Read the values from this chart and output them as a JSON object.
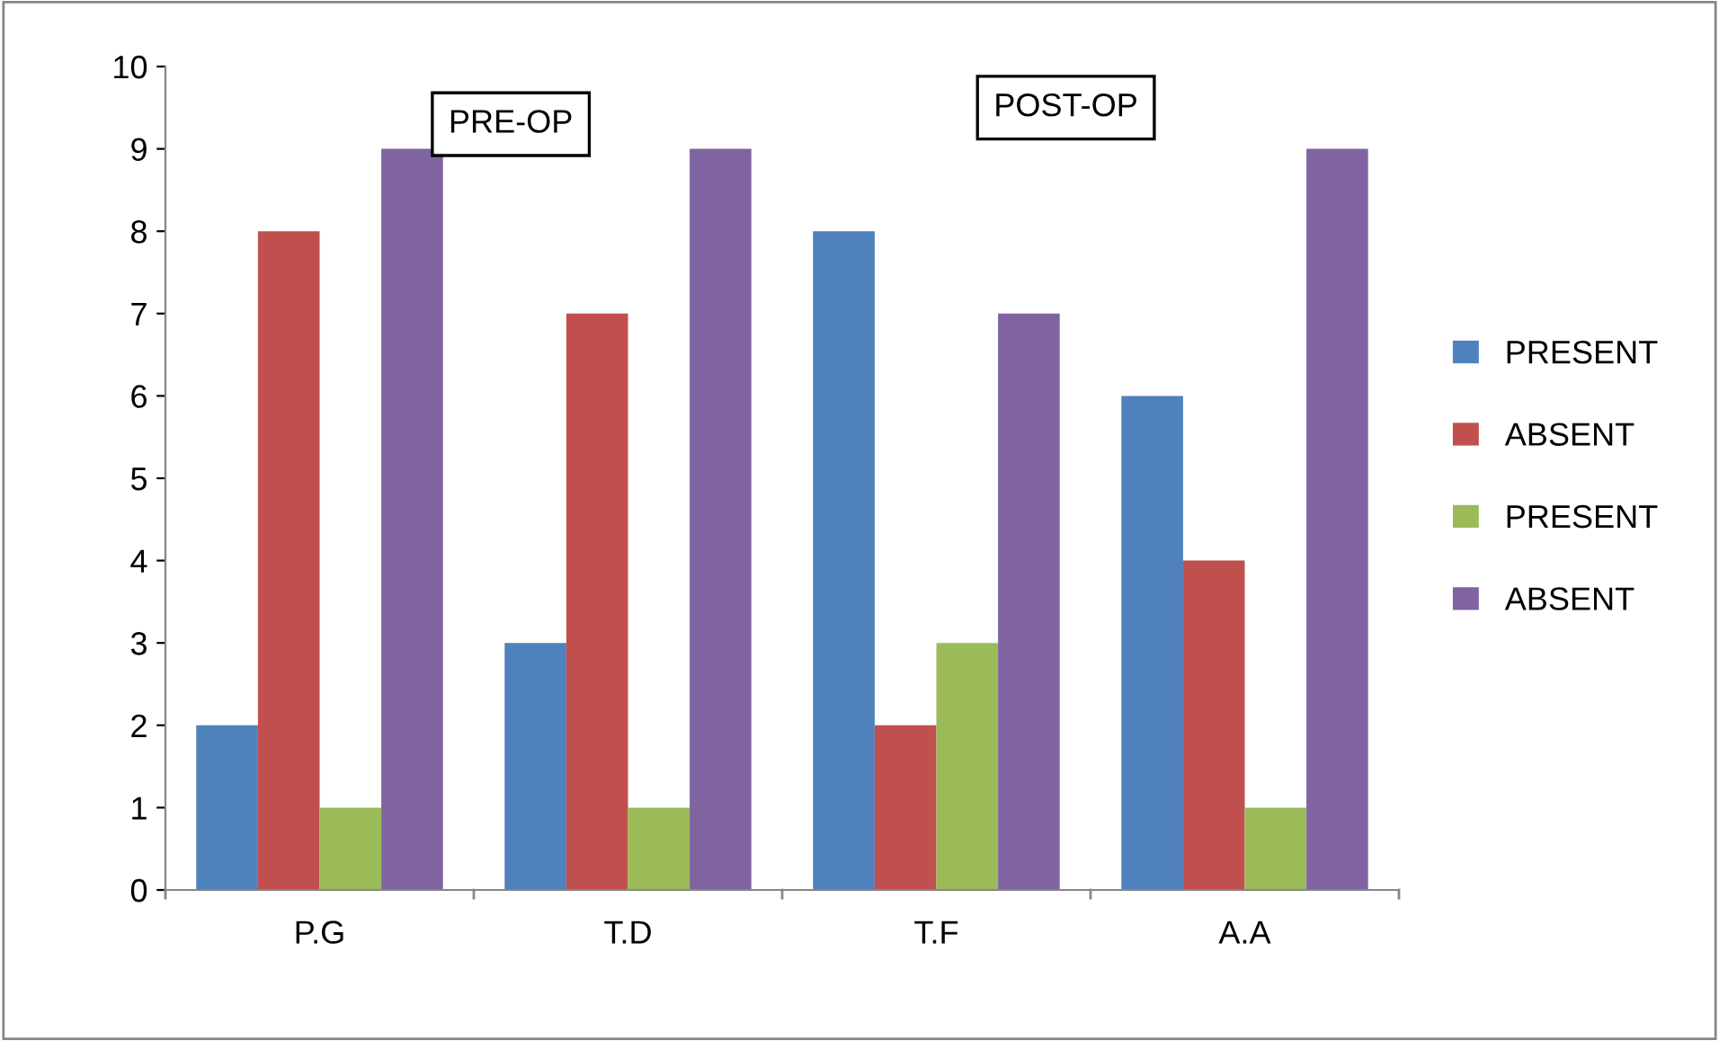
{
  "chart_data": {
    "type": "bar",
    "categories": [
      "P.G",
      "T.D",
      "T.F",
      "A.A"
    ],
    "series": [
      {
        "name": "PRESENT",
        "color": "#4f81bd",
        "values": [
          2,
          3,
          8,
          6
        ]
      },
      {
        "name": "ABSENT",
        "color": "#c0504d",
        "values": [
          8,
          7,
          2,
          4
        ]
      },
      {
        "name": "PRESENT",
        "color": "#9bbb59",
        "values": [
          1,
          1,
          3,
          1
        ]
      },
      {
        "name": "ABSENT",
        "color": "#8064a2",
        "values": [
          9,
          9,
          7,
          9
        ]
      }
    ],
    "ylim": [
      0,
      10
    ],
    "yticks": [
      0,
      1,
      2,
      3,
      4,
      5,
      6,
      7,
      8,
      9,
      10
    ],
    "grid": false,
    "legend": "right",
    "annotations": [
      "PRE-OP",
      "POST-OP"
    ]
  }
}
